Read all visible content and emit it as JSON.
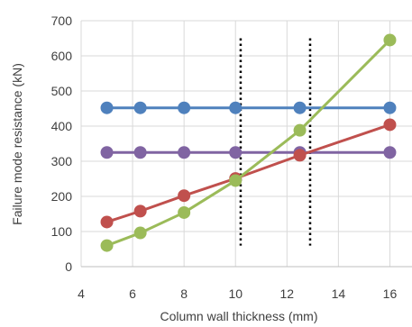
{
  "chart_data": {
    "type": "line",
    "title": "",
    "xlabel": "Column wall thickness (mm)",
    "ylabel": "Failure mode resistance (kN)",
    "xlim": [
      4,
      17
    ],
    "ylim": [
      0,
      700
    ],
    "x_ticks": [
      4,
      6,
      8,
      10,
      12,
      14,
      16
    ],
    "y_ticks": [
      0,
      100,
      200,
      300,
      400,
      500,
      600,
      700
    ],
    "grid": true,
    "legend": "none",
    "series": [
      {
        "color": "#4F81BD",
        "x": [
          5,
          6.3,
          8,
          10,
          12.5,
          16
        ],
        "y": [
          452,
          452,
          452,
          452,
          452,
          452
        ]
      },
      {
        "color": "#8064A2",
        "x": [
          5,
          6.3,
          8,
          10,
          12.5,
          16
        ],
        "y": [
          325,
          325,
          325,
          325,
          325,
          325
        ]
      },
      {
        "color": "#C0504D",
        "x": [
          5,
          6.3,
          8,
          10,
          12.5,
          16
        ],
        "y": [
          127,
          158,
          202,
          251,
          317,
          404
        ]
      },
      {
        "color": "#9BBB59",
        "x": [
          5,
          6.3,
          8,
          10,
          12.5,
          16
        ],
        "y": [
          60,
          96,
          154,
          245,
          388,
          645
        ]
      }
    ],
    "reference_lines": [
      {
        "x": 10.2,
        "y_range": [
          60,
          650
        ],
        "style": "dotted",
        "color": "#000000"
      },
      {
        "x": 12.9,
        "y_range": [
          60,
          650
        ],
        "style": "dotted",
        "color": "#000000"
      }
    ]
  }
}
